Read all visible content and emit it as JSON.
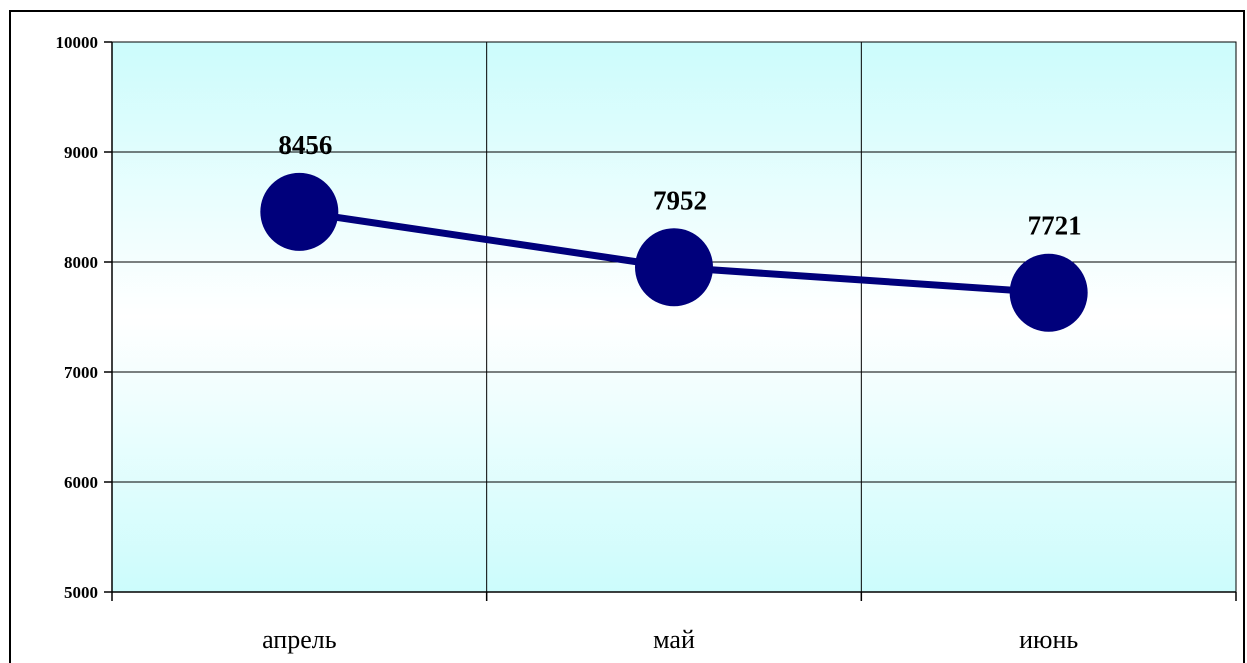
{
  "chart_data": {
    "type": "line",
    "categories": [
      "апрель",
      "май",
      "июнь"
    ],
    "series": [
      {
        "values": [
          8456,
          7952,
          7721
        ],
        "color": "#00007b"
      }
    ],
    "data_labels": [
      "8456",
      "7952",
      "7721"
    ],
    "ylim": [
      5000,
      10000
    ],
    "y_ticks": [
      5000,
      6000,
      7000,
      8000,
      9000,
      10000
    ],
    "y_tick_labels": [
      "5000",
      "6000",
      "7000",
      "8000",
      "9000",
      "10000"
    ],
    "grid": true,
    "legend": "none",
    "title": "",
    "xlabel": "",
    "ylabel": "",
    "colors": {
      "plot_background_edge": "#ccfcfc",
      "plot_background_center": "#ffffff",
      "line": "#00007b",
      "marker": "#00007b",
      "grid": "#000000"
    }
  }
}
